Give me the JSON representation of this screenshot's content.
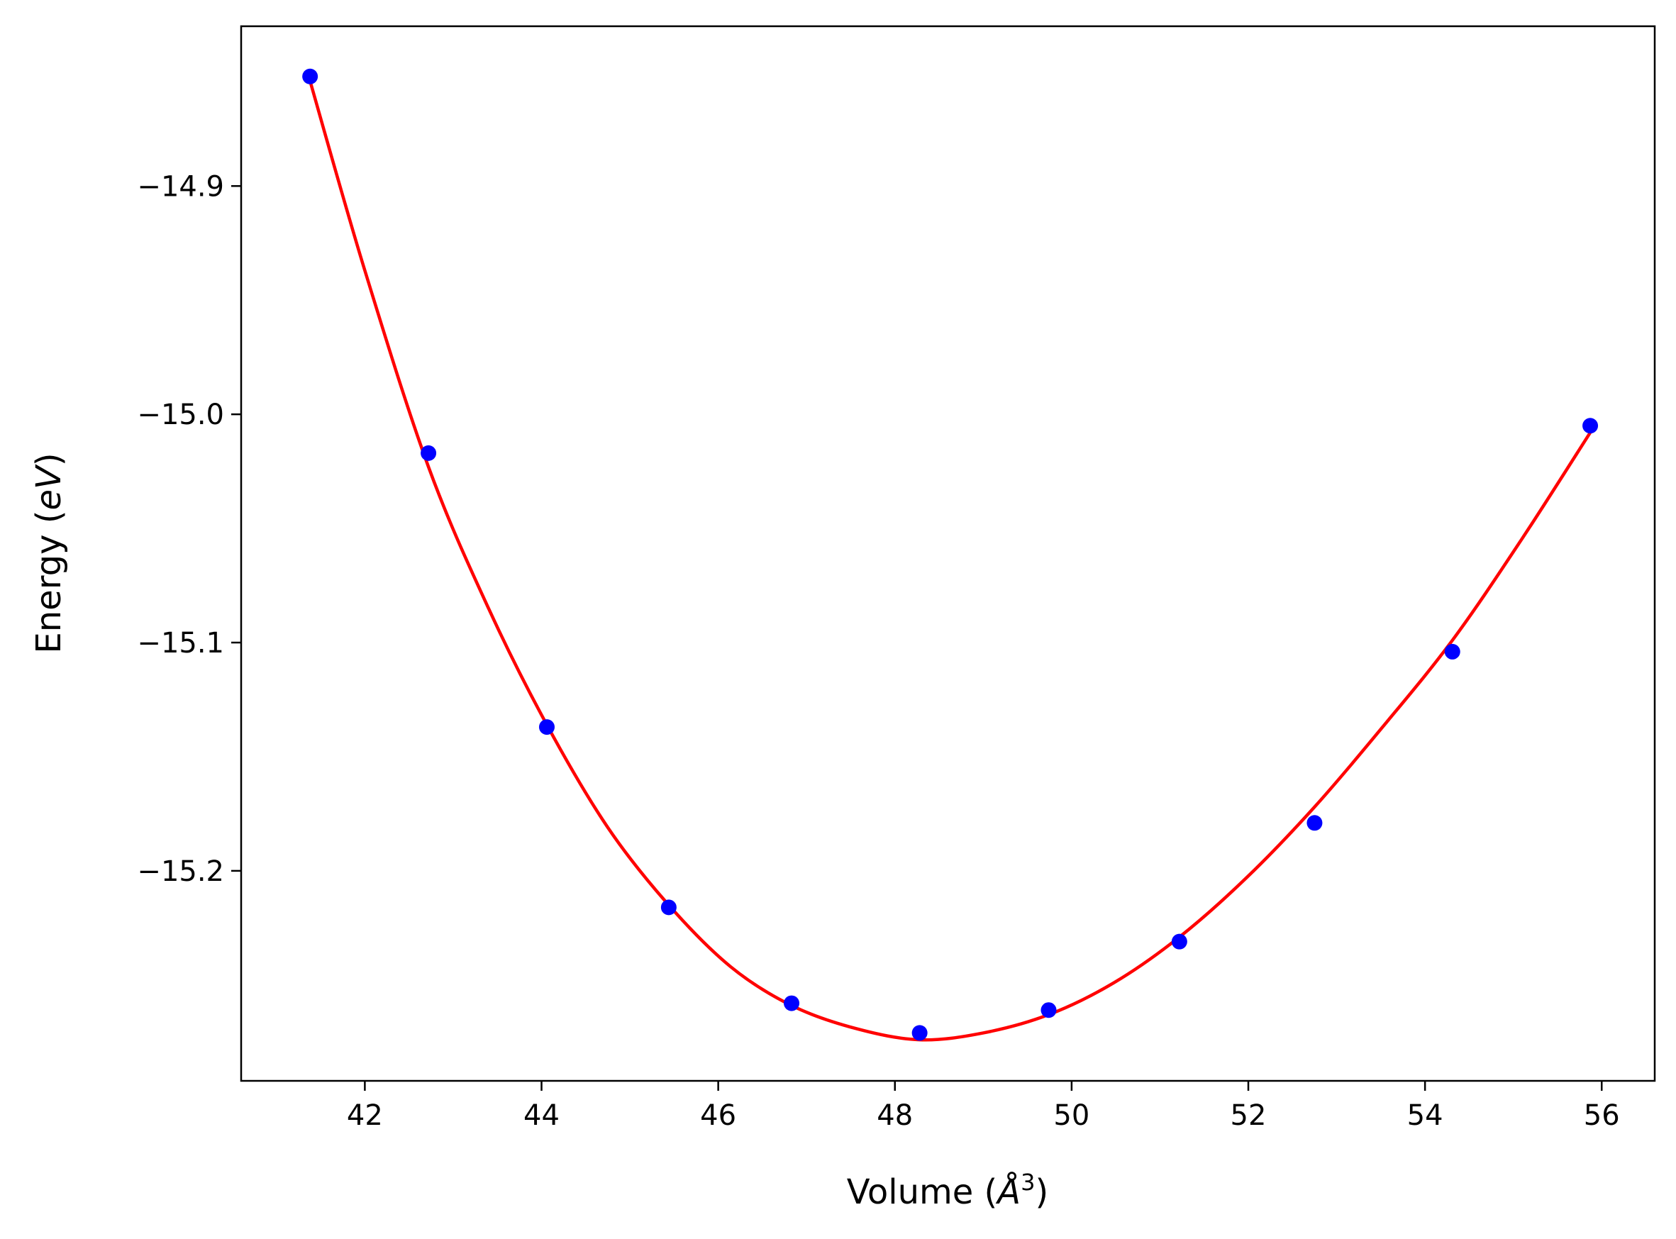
{
  "chart_data": {
    "type": "scatter",
    "title": "",
    "xlabel": "Volume (Å³)",
    "ylabel": "Energy (eV)",
    "xlabel_parts": {
      "prefix": "Volume (",
      "symbol": "Å",
      "sup": "3",
      "suffix": ")"
    },
    "ylabel_parts": {
      "prefix": "Energy (",
      "symbol": "eV",
      "suffix": ")"
    },
    "xlim": [
      40.6,
      56.6
    ],
    "ylim": [
      -15.292,
      -14.83
    ],
    "xticks": [
      42,
      44,
      46,
      48,
      50,
      52,
      54,
      56
    ],
    "xtick_labels": [
      "42",
      "44",
      "46",
      "48",
      "50",
      "52",
      "54",
      "56"
    ],
    "yticks": [
      -14.9,
      -15.0,
      -15.1,
      -15.2
    ],
    "ytick_labels": [
      "−14.9",
      "−15.0",
      "−15.1",
      "−15.2"
    ],
    "grid": false,
    "series": [
      {
        "kind": "scatter",
        "color": "#0000ff",
        "x": [
          41.38,
          42.72,
          44.06,
          45.44,
          46.83,
          48.28,
          49.74,
          51.22,
          52.75,
          54.31,
          55.87
        ],
        "y": [
          -14.852,
          -15.017,
          -15.137,
          -15.216,
          -15.258,
          -15.271,
          -15.261,
          -15.231,
          -15.179,
          -15.104,
          -15.005
        ]
      },
      {
        "kind": "line",
        "color": "#ff0000",
        "x": [
          41.38,
          42.0,
          42.72,
          43.4,
          44.06,
          44.75,
          45.44,
          46.14,
          46.83,
          47.55,
          48.28,
          49.0,
          49.74,
          50.48,
          51.22,
          51.98,
          52.75,
          53.52,
          54.31,
          55.09,
          55.87
        ],
        "y": [
          -14.854,
          -14.937,
          -15.023,
          -15.085,
          -15.136,
          -15.181,
          -15.215,
          -15.242,
          -15.259,
          -15.269,
          -15.274,
          -15.271,
          -15.263,
          -15.249,
          -15.229,
          -15.203,
          -15.172,
          -15.137,
          -15.099,
          -15.055,
          -15.008
        ]
      }
    ]
  }
}
